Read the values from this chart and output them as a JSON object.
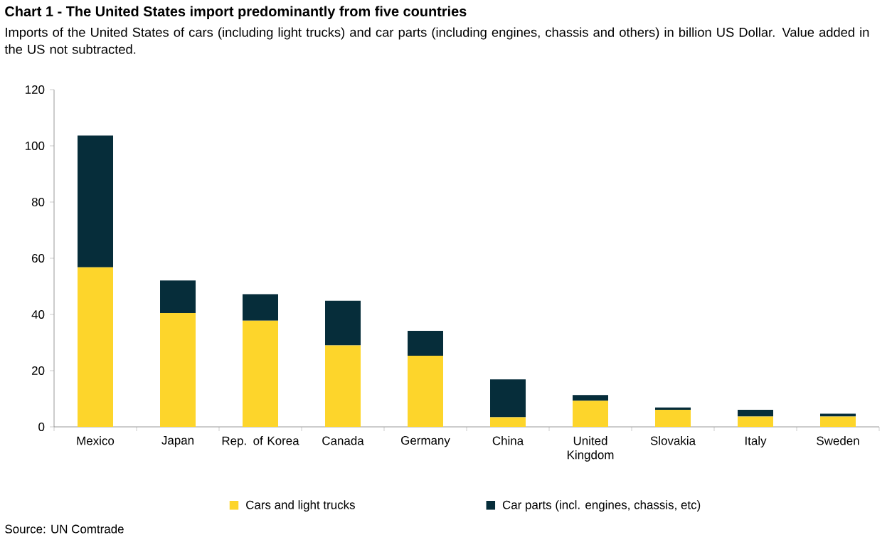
{
  "chart_data": {
    "type": "bar",
    "stacked": true,
    "title": "Chart 1 - The United States import predominantly from five countries",
    "subtitle": "Imports of the United States of cars (including light trucks) and car parts (including engines, chassis and others) in billion US Dollar. Value added in the US not subtracted.",
    "categories": [
      "Mexico",
      "Japan",
      "Rep. of Korea",
      "Canada",
      "Germany",
      "China",
      "United Kingdom",
      "Slovakia",
      "Italy",
      "Sweden"
    ],
    "series": [
      {
        "name": "Cars and light trucks",
        "color": "#fdd52b",
        "values": [
          56.8,
          40.5,
          37.8,
          29.0,
          25.3,
          3.4,
          9.3,
          6.1,
          3.7,
          3.7
        ]
      },
      {
        "name": "Car parts (incl. engines, chassis, etc)",
        "color": "#062d3a",
        "values": [
          46.9,
          11.6,
          9.4,
          15.9,
          8.9,
          13.5,
          2.0,
          0.8,
          2.4,
          1.0
        ]
      }
    ],
    "ylim": [
      0,
      120
    ],
    "yticks": [
      0,
      20,
      40,
      60,
      80,
      100,
      120
    ],
    "grid": false,
    "legend": "bottom",
    "annotations": [
      "Source: UN Comtrade"
    ]
  }
}
